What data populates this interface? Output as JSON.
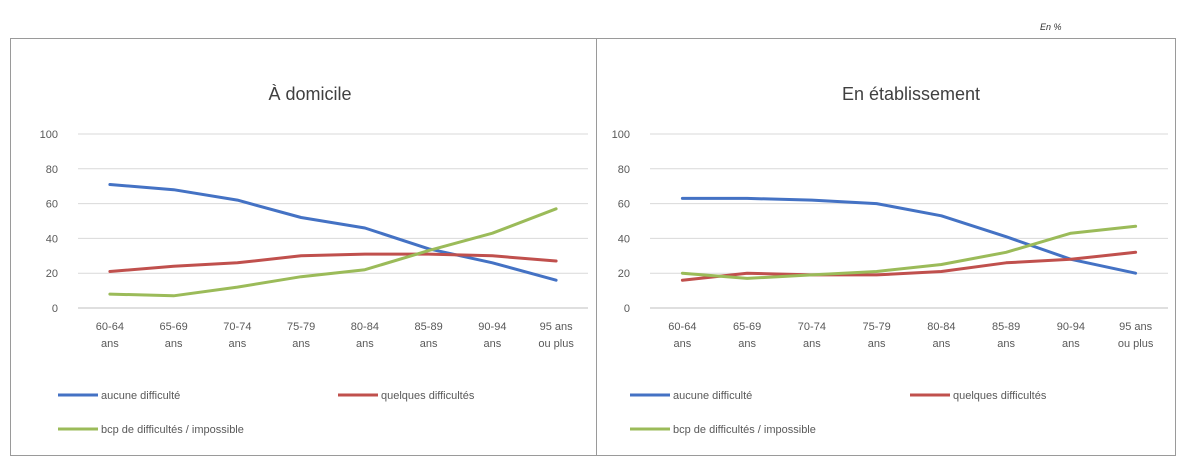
{
  "unit_note": "En %",
  "chart_data": [
    {
      "type": "line",
      "title": "À domicile",
      "categories": [
        [
          "60-64",
          "ans"
        ],
        [
          "65-69",
          "ans"
        ],
        [
          "70-74",
          "ans"
        ],
        [
          "75-79",
          "ans"
        ],
        [
          "80-84",
          "ans"
        ],
        [
          "85-89",
          "ans"
        ],
        [
          "90-94",
          "ans"
        ],
        [
          "95 ans",
          "ou plus"
        ]
      ],
      "ylim": [
        0,
        100
      ],
      "yticks": [
        "100",
        "80",
        "60",
        "40",
        "20",
        "0"
      ],
      "grid": true,
      "legend_position": "bottom",
      "series": [
        {
          "name": "aucune difficulté",
          "color": "#4472c4",
          "values": [
            71,
            68,
            62,
            52,
            46,
            34,
            26,
            16
          ]
        },
        {
          "name": "quelques difficultés",
          "color": "#c0504d",
          "values": [
            21,
            24,
            26,
            30,
            31,
            31,
            30,
            27
          ]
        },
        {
          "name": "bcp de difficultés / impossible",
          "color": "#9bbb59",
          "values": [
            8,
            7,
            12,
            18,
            22,
            33,
            43,
            57
          ]
        }
      ]
    },
    {
      "type": "line",
      "title": "En établissement",
      "categories": [
        [
          "60-64",
          "ans"
        ],
        [
          "65-69",
          "ans"
        ],
        [
          "70-74",
          "ans"
        ],
        [
          "75-79",
          "ans"
        ],
        [
          "80-84",
          "ans"
        ],
        [
          "85-89",
          "ans"
        ],
        [
          "90-94",
          "ans"
        ],
        [
          "95 ans",
          "ou plus"
        ]
      ],
      "ylim": [
        0,
        100
      ],
      "yticks": [
        "100",
        "80",
        "60",
        "40",
        "20",
        "0"
      ],
      "grid": true,
      "legend_position": "bottom",
      "series": [
        {
          "name": "aucune difficulté",
          "color": "#4472c4",
          "values": [
            63,
            63,
            62,
            60,
            53,
            41,
            28,
            20
          ]
        },
        {
          "name": "quelques difficultés",
          "color": "#c0504d",
          "values": [
            16,
            20,
            19,
            19,
            21,
            26,
            28,
            32
          ]
        },
        {
          "name": "bcp de difficultés / impossible",
          "color": "#9bbb59",
          "values": [
            20,
            17,
            19,
            21,
            25,
            32,
            43,
            47
          ]
        }
      ]
    }
  ]
}
